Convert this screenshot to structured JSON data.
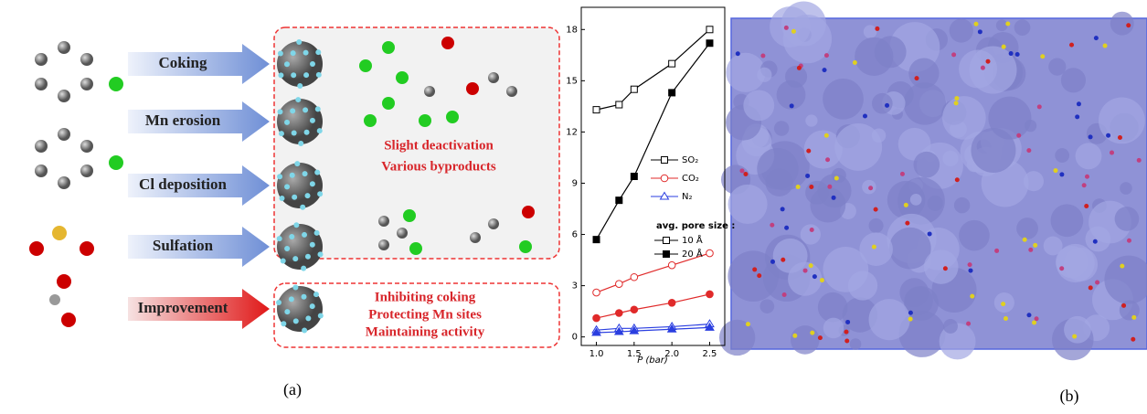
{
  "diagram": {
    "steps": [
      "Coking",
      "Mn erosion",
      "Cl deposition",
      "Sulfation",
      "Improvement"
    ],
    "deactivation": [
      "Slight deactivation",
      "Various byproducts"
    ],
    "improvement": [
      "Inhibiting coking",
      "Protecting Mn sites",
      "Maintaining activity"
    ],
    "label_a": "(a)",
    "label_b": "(b)"
  },
  "chart_data": {
    "type": "line",
    "xlabel": "P (bar)",
    "x": [
      1.0,
      1.3,
      1.5,
      2.0,
      2.5
    ],
    "xlim": [
      0.8,
      2.7
    ],
    "xticks": [
      {
        "value": 1.0,
        "label": "1.0"
      },
      {
        "value": 1.5,
        "label": "1.5"
      },
      {
        "value": 2.0,
        "label": "2.0"
      },
      {
        "value": 2.5,
        "label": "2.5"
      }
    ],
    "ylim": [
      -0.5,
      19.3
    ],
    "yticks": [
      0,
      3,
      6,
      9,
      12,
      15,
      18
    ],
    "legend_title": "avg. pore size :",
    "series": [
      {
        "name": "SO₂",
        "pore_size": "10 Å",
        "color": "#000000",
        "marker": "square",
        "filled": false,
        "values": [
          13.3,
          13.6,
          14.5,
          16.0,
          18.0
        ]
      },
      {
        "name": "SO₂",
        "pore_size": "20 Å",
        "color": "#000000",
        "marker": "square",
        "filled": true,
        "values": [
          5.7,
          8.0,
          9.4,
          14.3,
          17.2
        ]
      },
      {
        "name": "CO₂",
        "pore_size": "10 Å",
        "color": "#e02a2a",
        "marker": "circle",
        "filled": false,
        "values": [
          2.6,
          3.1,
          3.5,
          4.2,
          4.9
        ]
      },
      {
        "name": "CO₂",
        "pore_size": "20 Å",
        "color": "#e02a2a",
        "marker": "circle",
        "filled": true,
        "values": [
          1.1,
          1.4,
          1.6,
          2.0,
          2.5
        ]
      },
      {
        "name": "N₂",
        "pore_size": "10 Å",
        "color": "#2a3ee0",
        "marker": "triangle",
        "filled": false,
        "values": [
          0.4,
          0.5,
          0.5,
          0.6,
          0.75
        ]
      },
      {
        "name": "N₂",
        "pore_size": "20 Å",
        "color": "#2a3ee0",
        "marker": "triangle",
        "filled": true,
        "values": [
          0.25,
          0.3,
          0.35,
          0.45,
          0.55
        ]
      }
    ]
  }
}
